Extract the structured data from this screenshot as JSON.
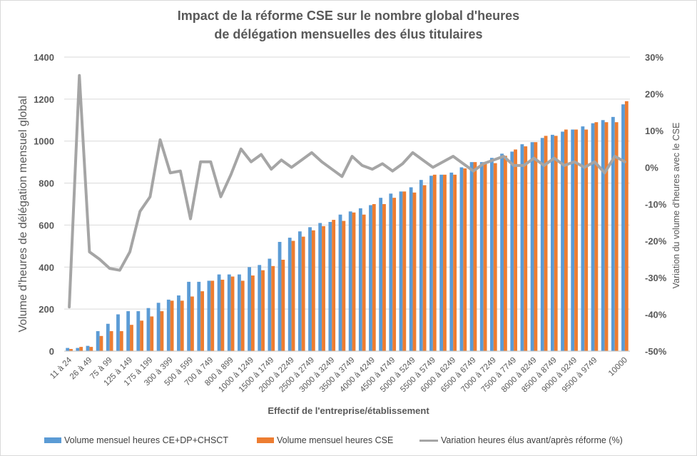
{
  "chart_data": {
    "type": "bar+line",
    "title_line1": "Impact de la réforme CSE sur le nombre global d'heures",
    "title_line2": "de délégation mensuelles des élus titulaires",
    "xlabel": "Effectif de l'entreprise/établissement",
    "ylabel": "Volume d'heures de délégation mensuel global",
    "y2label": "Variation du volume d'heures avec le CSE",
    "ylim": [
      0,
      1400
    ],
    "y2lim": [
      -50,
      30
    ],
    "y_ticks": [
      "0",
      "200",
      "400",
      "600",
      "800",
      "1000",
      "1200",
      "1400"
    ],
    "y2_ticks": [
      "-50%",
      "-40%",
      "-30%",
      "-20%",
      "-10%",
      "0%",
      "10%",
      "20%",
      "30%"
    ],
    "grid": true,
    "legend_position": "bottom",
    "colors": {
      "ce": "#5b9bd5",
      "cse": "#ed7d31",
      "variation": "#a5a5a5"
    },
    "x_tick_labels": [
      "11 à 24",
      "26 à 49",
      "75 à 99",
      "125 à 149",
      "175 à 199",
      "300 à 399",
      "500 à 599",
      "700 à 749",
      "800 à 899",
      "1000 à 1249",
      "1500 à 1749",
      "2000 à 2249",
      "2500 à 2749",
      "3000 à 3249",
      "3500 à 3749",
      "4000 à 4249",
      "4500 à 4749",
      "5000 à 5249",
      "5500 à 5749",
      "6000 à 6249",
      "6500 à 6749",
      "7000 à 7249",
      "7500 à 7749",
      "8000 à 8249",
      "8500 à 8749",
      "9000 à 9249",
      "9500 à 9749",
      "10000"
    ],
    "series": [
      {
        "name": "Volume mensuel heures CE+DP+CHSCT",
        "values": [
          15,
          15,
          25,
          95,
          130,
          175,
          190,
          190,
          205,
          230,
          245,
          265,
          330,
          330,
          335,
          365,
          365,
          365,
          400,
          410,
          440,
          520,
          540,
          570,
          590,
          610,
          615,
          650,
          665,
          680,
          695,
          730,
          750,
          760,
          780,
          815,
          835,
          840,
          850,
          875,
          900,
          900,
          920,
          940,
          950,
          985,
          995,
          1015,
          1030,
          1045,
          1055,
          1070,
          1085,
          1100,
          1115,
          1175
        ]
      },
      {
        "name": "Volume mensuel heures CSE",
        "values": [
          10,
          20,
          20,
          72,
          95,
          95,
          125,
          145,
          165,
          190,
          240,
          240,
          260,
          285,
          335,
          340,
          355,
          335,
          360,
          385,
          405,
          435,
          525,
          545,
          575,
          595,
          625,
          620,
          660,
          650,
          700,
          700,
          730,
          760,
          755,
          790,
          840,
          840,
          840,
          870,
          900,
          900,
          895,
          930,
          960,
          975,
          995,
          1025,
          1025,
          1055,
          1055,
          1055,
          1090,
          1090,
          1090,
          1190
        ]
      },
      {
        "name": "Variation heures élus avant/après réforme (%)",
        "values": [
          -38,
          25,
          -23,
          -25,
          -27.5,
          -28,
          -23,
          -12,
          -8,
          7.5,
          -1.5,
          -1,
          -14,
          1.5,
          1.5,
          -8,
          -2,
          5,
          1.5,
          3.5,
          -0.5,
          2,
          0,
          2,
          4,
          1.5,
          -0.5,
          -2.5,
          3,
          0.5,
          -0.5,
          1,
          -1,
          1,
          4,
          2,
          0,
          1.5,
          3,
          1,
          -1,
          1,
          2,
          3,
          0.5,
          0.5,
          2.5,
          0.5,
          2.5,
          0.5,
          1.5,
          0,
          1.5,
          -1.5,
          3,
          1.5
        ]
      }
    ]
  }
}
